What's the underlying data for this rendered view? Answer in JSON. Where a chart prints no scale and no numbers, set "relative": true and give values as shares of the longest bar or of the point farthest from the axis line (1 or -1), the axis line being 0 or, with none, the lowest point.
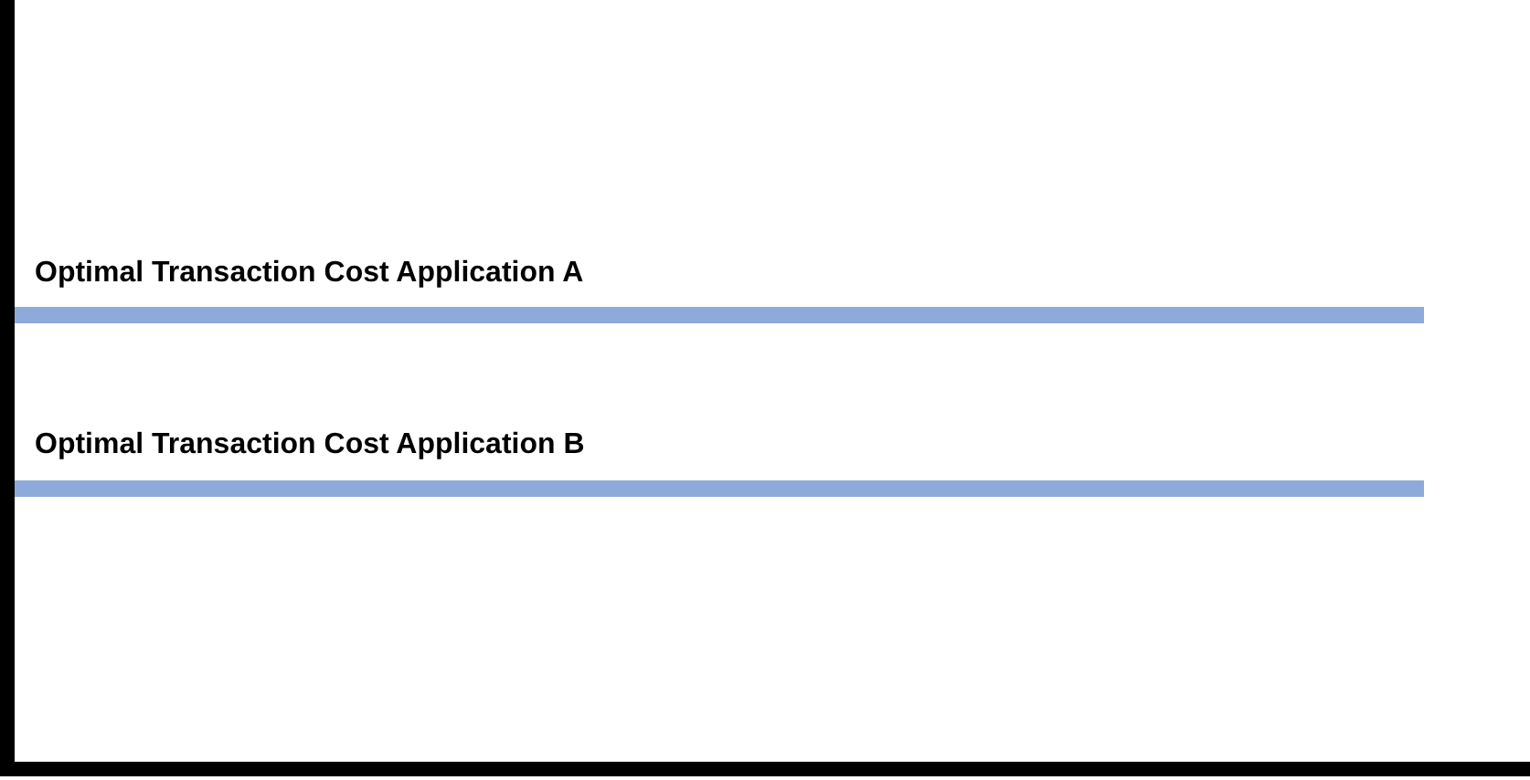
{
  "chart_data": {
    "type": "bar",
    "orientation": "horizontal",
    "relative": true,
    "categories": [
      "Optimal Transaction Cost Application A",
      "Optimal Transaction Cost Application B"
    ],
    "values": [
      1,
      1
    ],
    "color": "#8eaadb"
  }
}
